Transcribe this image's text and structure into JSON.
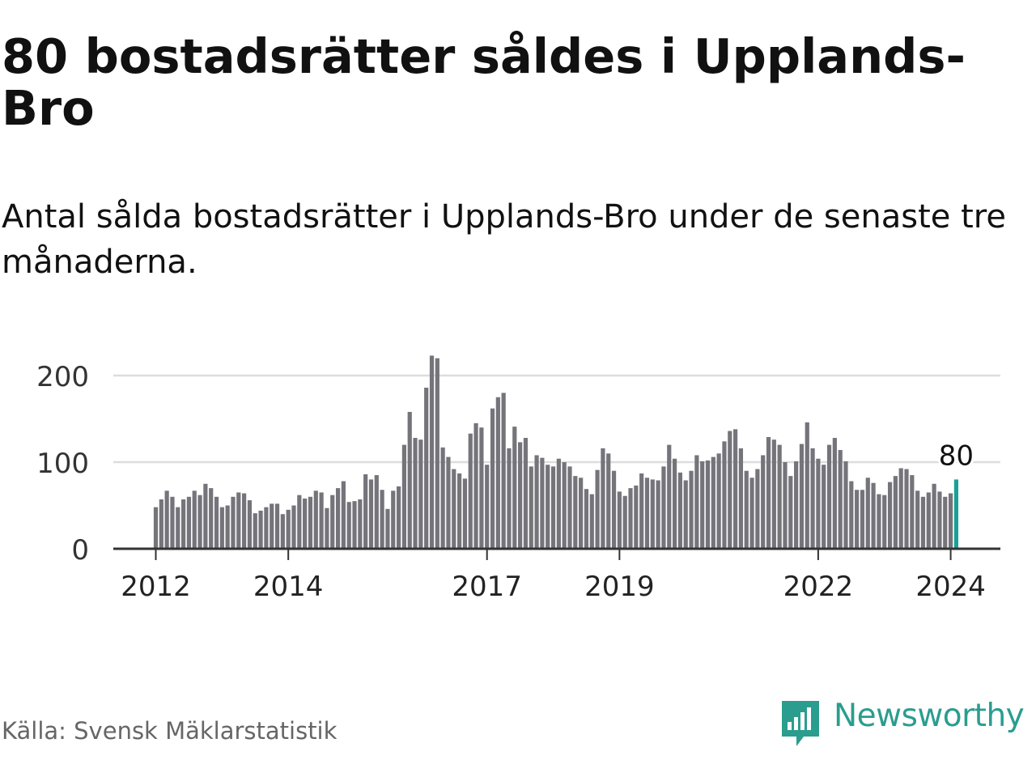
{
  "header": {
    "title": "80 bostadsrätter såldes i Upplands-Bro",
    "subtitle": "Antal sålda bostadsrätter i Upplands-Bro under de senaste tre månaderna."
  },
  "footer": {
    "source": "Källa: Svensk Mäklarstatistik",
    "brand": "Newsworthy"
  },
  "colors": {
    "bar": "#75747b",
    "highlight": "#1aa196",
    "grid": "#dddddd",
    "axis": "#333333",
    "brand": "#2a9d8f"
  },
  "chart_data": {
    "type": "bar",
    "title": "80 bostadsrätter såldes i Upplands-Bro",
    "subtitle": "Antal sålda bostadsrätter i Upplands-Bro under de senaste tre månaderna.",
    "xlabel": "",
    "ylabel": "",
    "ylim": [
      0,
      220
    ],
    "yticks": [
      0,
      100,
      200
    ],
    "x_start": "2012-01",
    "x_tick_labels": [
      {
        "label": "2012",
        "index": 0
      },
      {
        "label": "2014",
        "index": 24
      },
      {
        "label": "2017",
        "index": 60
      },
      {
        "label": "2019",
        "index": 84
      },
      {
        "label": "2022",
        "index": 120
      },
      {
        "label": "2024",
        "index": 144
      }
    ],
    "highlight": {
      "index": 145,
      "label": "80"
    },
    "values": [
      48,
      57,
      67,
      60,
      48,
      57,
      60,
      67,
      62,
      75,
      70,
      60,
      48,
      50,
      60,
      65,
      64,
      56,
      41,
      44,
      48,
      52,
      52,
      40,
      45,
      50,
      62,
      58,
      60,
      67,
      65,
      47,
      62,
      70,
      78,
      54,
      55,
      57,
      86,
      80,
      85,
      68,
      46,
      67,
      72,
      120,
      158,
      128,
      126,
      186,
      223,
      220,
      117,
      106,
      92,
      87,
      81,
      133,
      145,
      140,
      97,
      162,
      175,
      180,
      116,
      141,
      123,
      128,
      95,
      108,
      105,
      97,
      95,
      104,
      100,
      95,
      84,
      82,
      69,
      63,
      91,
      116,
      110,
      90,
      66,
      61,
      70,
      73,
      87,
      82,
      80,
      79,
      95,
      120,
      104,
      88,
      79,
      90,
      108,
      101,
      102,
      106,
      110,
      124,
      136,
      138,
      116,
      90,
      82,
      92,
      108,
      129,
      126,
      120,
      100,
      84,
      101,
      121,
      146,
      116,
      104,
      97,
      120,
      128,
      114,
      101,
      78,
      68,
      68,
      82,
      76,
      63,
      62,
      77,
      84,
      93,
      92,
      85,
      67,
      60,
      65,
      75,
      66,
      60,
      64,
      80
    ]
  }
}
